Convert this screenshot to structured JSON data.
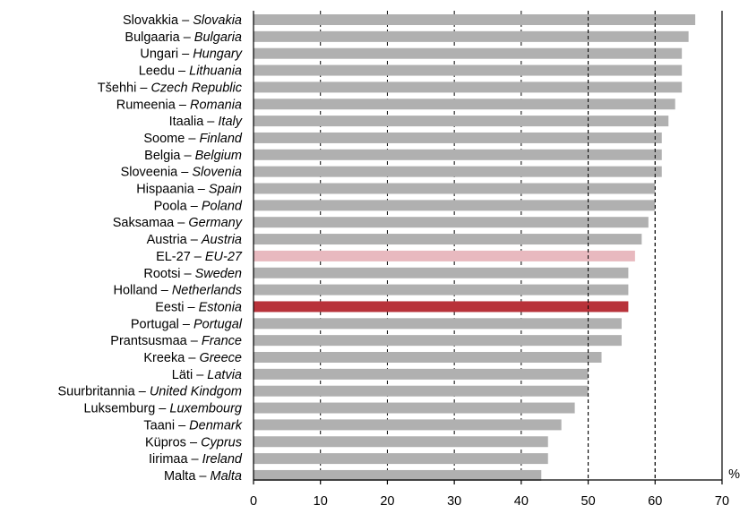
{
  "chart_data": {
    "type": "bar",
    "orientation": "horizontal",
    "unit_label": "%",
    "xlim": [
      0,
      70
    ],
    "x_ticks": [
      "0",
      "10",
      "20",
      "30",
      "40",
      "50",
      "60",
      "70"
    ],
    "grid": "vertical dashed",
    "colors": {
      "default": "#b0b0b0",
      "eu27": "#e8b9bf",
      "estonia": "#b8323a"
    },
    "bars": [
      {
        "et": "Slovakkia",
        "en": "Slovakia",
        "value": 66,
        "highlight": "default"
      },
      {
        "et": "Bulgaaria",
        "en": "Bulgaria",
        "value": 65,
        "highlight": "default"
      },
      {
        "et": "Ungari",
        "en": "Hungary",
        "value": 64,
        "highlight": "default"
      },
      {
        "et": "Leedu",
        "en": "Lithuania",
        "value": 64,
        "highlight": "default"
      },
      {
        "et": "Tšehhi",
        "en": "Czech Republic",
        "value": 64,
        "highlight": "default"
      },
      {
        "et": "Rumeenia",
        "en": "Romania",
        "value": 63,
        "highlight": "default"
      },
      {
        "et": "Itaalia",
        "en": "Italy",
        "value": 62,
        "highlight": "default"
      },
      {
        "et": "Soome",
        "en": "Finland",
        "value": 61,
        "highlight": "default"
      },
      {
        "et": "Belgia",
        "en": "Belgium",
        "value": 61,
        "highlight": "default"
      },
      {
        "et": "Sloveenia",
        "en": "Slovenia",
        "value": 61,
        "highlight": "default"
      },
      {
        "et": "Hispaania",
        "en": "Spain",
        "value": 60,
        "highlight": "default"
      },
      {
        "et": "Poola",
        "en": "Poland",
        "value": 60,
        "highlight": "default"
      },
      {
        "et": "Saksamaa",
        "en": "Germany",
        "value": 59,
        "highlight": "default"
      },
      {
        "et": "Austria",
        "en": "Austria",
        "value": 58,
        "highlight": "default"
      },
      {
        "et": "EL-27",
        "en": "EU-27",
        "value": 57,
        "highlight": "eu27"
      },
      {
        "et": "Rootsi",
        "en": "Sweden",
        "value": 56,
        "highlight": "default"
      },
      {
        "et": "Holland",
        "en": "Netherlands",
        "value": 56,
        "highlight": "default"
      },
      {
        "et": "Eesti",
        "en": "Estonia",
        "value": 56,
        "highlight": "estonia"
      },
      {
        "et": "Portugal",
        "en": "Portugal",
        "value": 55,
        "highlight": "default"
      },
      {
        "et": "Prantsusmaa",
        "en": "France",
        "value": 55,
        "highlight": "default"
      },
      {
        "et": "Kreeka",
        "en": "Greece",
        "value": 52,
        "highlight": "default"
      },
      {
        "et": "Läti",
        "en": "Latvia",
        "value": 50,
        "highlight": "default"
      },
      {
        "et": "Suurbritannia",
        "en": "United Kindgom",
        "value": 50,
        "highlight": "default"
      },
      {
        "et": "Luksemburg",
        "en": "Luxembourg",
        "value": 48,
        "highlight": "default"
      },
      {
        "et": "Taani",
        "en": "Denmark",
        "value": 46,
        "highlight": "default"
      },
      {
        "et": "Küpros",
        "en": "Cyprus",
        "value": 44,
        "highlight": "default"
      },
      {
        "et": "Iirimaa",
        "en": "Ireland",
        "value": 44,
        "highlight": "default"
      },
      {
        "et": "Malta",
        "en": "Malta",
        "value": 43,
        "highlight": "default"
      }
    ]
  }
}
